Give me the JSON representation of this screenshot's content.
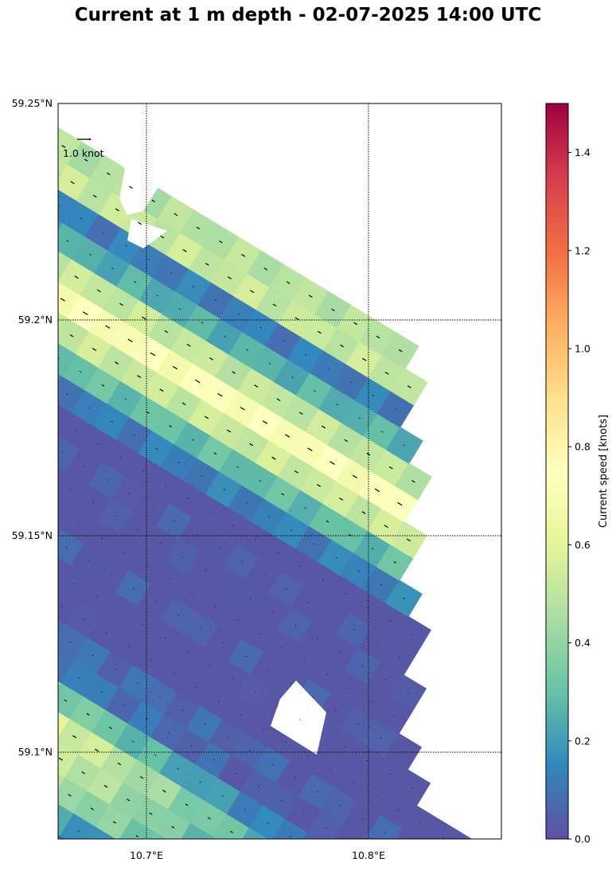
{
  "title": "Current at 1 m depth - 02-07-2025 14:00 UTC",
  "map": {
    "lat_ticks": [
      "59.25°N",
      "59.2°N",
      "59.15°N",
      "59.1°N"
    ],
    "lon_ticks": [
      "10.7°E",
      "10.8°E"
    ],
    "gridlines": "dotted",
    "reference_arrow_label": "1.0 knot"
  },
  "colorbar": {
    "label": "Current speed [knots]",
    "ticks": [
      "0.0",
      "0.2",
      "0.4",
      "0.6",
      "0.8",
      "1.0",
      "1.2",
      "1.4"
    ],
    "range": [
      0,
      1.5
    ],
    "colormap": "Spectral_r",
    "stops": [
      "#5e4fa2",
      "#3288bd",
      "#66c2a5",
      "#abdda4",
      "#e6f598",
      "#ffffbf",
      "#fee08b",
      "#fdae61",
      "#f46d43",
      "#d53e4f",
      "#9e0142"
    ]
  },
  "frame_color": "#000000"
}
